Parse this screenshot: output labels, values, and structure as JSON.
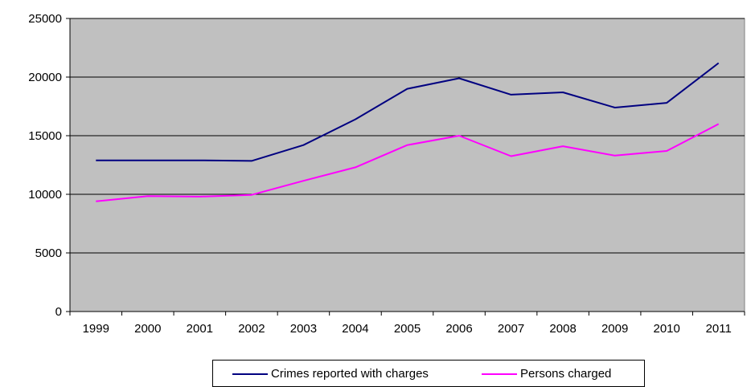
{
  "chart_data": {
    "type": "line",
    "title": "",
    "xlabel": "",
    "ylabel": "",
    "categories": [
      "1999",
      "2000",
      "2001",
      "2002",
      "2003",
      "2004",
      "2005",
      "2006",
      "2007",
      "2008",
      "2009",
      "2010",
      "2011"
    ],
    "ylim": [
      0,
      25000
    ],
    "yticks": [
      "0",
      "5000",
      "10000",
      "15000",
      "20000",
      "25000"
    ],
    "grid": true,
    "legend_position": "bottom",
    "plot_background": "#c0c0c0",
    "series": [
      {
        "name": "Crimes reported with charges",
        "color": "#000080",
        "values": [
          12900,
          12900,
          12900,
          12850,
          14200,
          16400,
          19000,
          19900,
          18500,
          18700,
          17400,
          17800,
          21200
        ]
      },
      {
        "name": "Persons charged",
        "color": "#ff00ff",
        "values": [
          9400,
          9850,
          9800,
          9950,
          11150,
          12300,
          14200,
          15000,
          13250,
          14100,
          13300,
          13700,
          16000
        ]
      }
    ]
  }
}
